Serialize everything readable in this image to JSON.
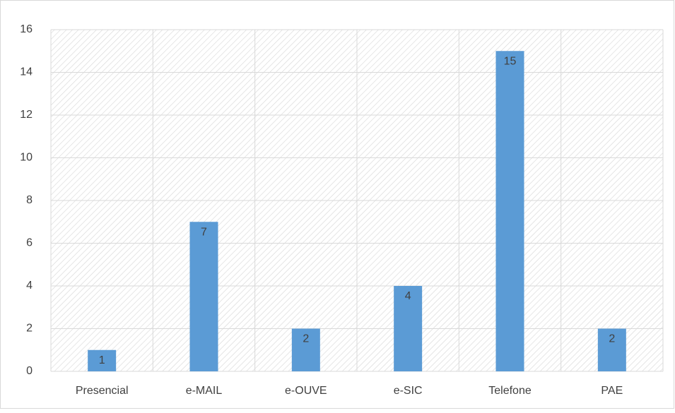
{
  "chart_data": {
    "type": "bar",
    "categories": [
      "Presencial",
      "e-MAIL",
      "e-OUVE",
      "e-SIC",
      "Telefone",
      "PAE"
    ],
    "values": [
      1,
      7,
      2,
      4,
      15,
      2
    ],
    "color": "#5b9bd5",
    "ylim": [
      0,
      16
    ],
    "yticks": [
      0,
      2,
      4,
      6,
      8,
      10,
      12,
      14,
      16
    ],
    "grid": true,
    "data_labels": true
  }
}
